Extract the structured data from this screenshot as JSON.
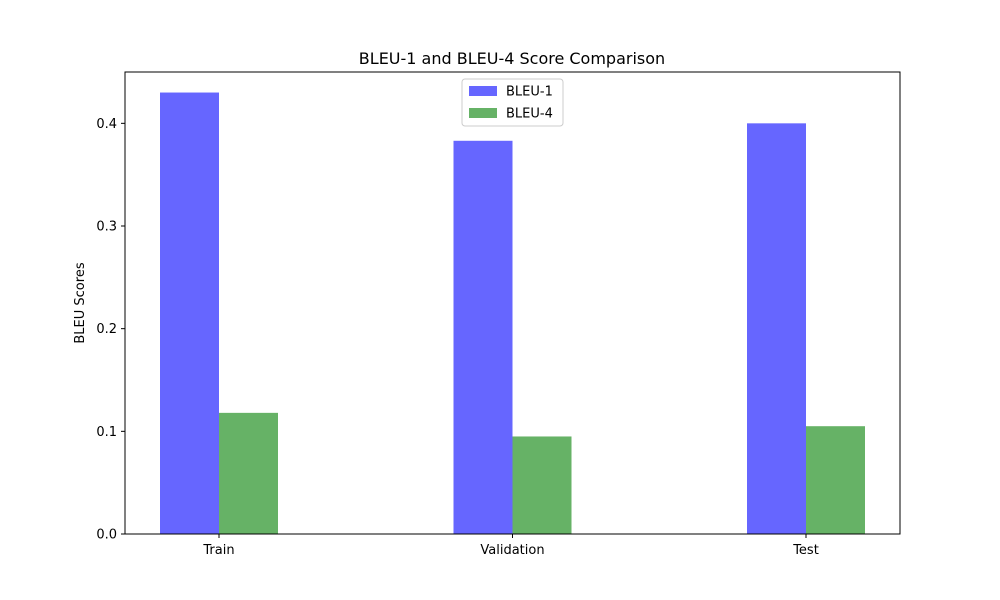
{
  "chart_data": {
    "type": "bar",
    "title": "BLEU-1 and BLEU-4 Score Comparison",
    "xlabel": "",
    "ylabel": "BLEU Scores",
    "categories": [
      "Train",
      "Validation",
      "Test"
    ],
    "series": [
      {
        "name": "BLEU-1",
        "color": "#6666ff",
        "values": [
          0.43,
          0.383,
          0.4
        ]
      },
      {
        "name": "BLEU-4",
        "color": "#66b266",
        "values": [
          0.118,
          0.095,
          0.105
        ]
      }
    ],
    "ylim": [
      0,
      0.45
    ],
    "yticks": [
      "0.0",
      "0.1",
      "0.2",
      "0.3",
      "0.4"
    ],
    "grid": false,
    "legend_position": "top-center"
  }
}
